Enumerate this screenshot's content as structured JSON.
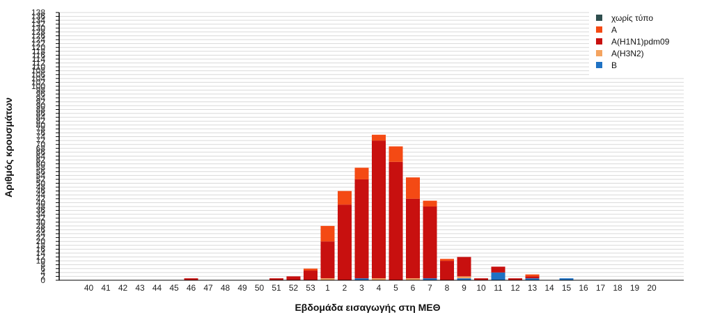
{
  "chart_data": {
    "type": "bar",
    "stacked": true,
    "xlabel": "Εβδομάδα εισαγωγής στη ΜΕΘ",
    "ylabel": "Αριθμός κρουσμάτων",
    "ylim": [
      0,
      138
    ],
    "y_ticks": [
      0,
      2,
      4,
      6,
      8,
      10,
      12,
      14,
      16,
      18,
      20,
      22,
      24,
      26,
      28,
      30,
      32,
      34,
      36,
      38,
      40,
      42,
      44,
      46,
      48,
      50,
      52,
      54,
      56,
      58,
      60,
      62,
      64,
      66,
      68,
      70,
      72,
      74,
      76,
      78,
      80,
      82,
      84,
      86,
      88,
      90,
      92,
      94,
      96,
      98,
      100,
      102,
      104,
      106,
      108,
      110,
      112,
      114,
      116,
      118,
      120,
      122,
      124,
      126,
      128,
      130,
      132,
      134,
      136,
      138
    ],
    "grid": true,
    "legend_position": "top-right",
    "categories": [
      "40",
      "41",
      "42",
      "43",
      "44",
      "45",
      "46",
      "47",
      "48",
      "49",
      "50",
      "51",
      "52",
      "53",
      "1",
      "2",
      "3",
      "4",
      "5",
      "6",
      "7",
      "8",
      "9",
      "10",
      "11",
      "12",
      "13",
      "14",
      "15",
      "16",
      "17",
      "18",
      "19",
      "20"
    ],
    "series": [
      {
        "name": "B",
        "color": "#1f72c4",
        "values": [
          0,
          0,
          0,
          0,
          0,
          0,
          0,
          0,
          0,
          0,
          0,
          0,
          0,
          0,
          0,
          0,
          1,
          0,
          0,
          0,
          1,
          0,
          1,
          0,
          4,
          0,
          1,
          0,
          1,
          0,
          0,
          0,
          0,
          0
        ]
      },
      {
        "name": "A(H3N2)",
        "color": "#f4a460",
        "values": [
          0,
          0,
          0,
          0,
          0,
          0,
          0,
          0,
          0,
          0,
          0,
          0,
          0,
          0,
          1,
          0,
          0,
          1,
          0,
          1,
          0,
          0,
          1,
          0,
          0,
          0,
          0,
          0,
          0,
          0,
          0,
          0,
          0,
          0
        ]
      },
      {
        "name": "A(H1N1)pdm09",
        "color": "#c8100f",
        "values": [
          0,
          0,
          0,
          0,
          0,
          0,
          1,
          0,
          0,
          0,
          0,
          1,
          2,
          5,
          19,
          39,
          51,
          71,
          61,
          41,
          37,
          10,
          10,
          1,
          3,
          1,
          1,
          0,
          0,
          0,
          0,
          0,
          0,
          0
        ]
      },
      {
        "name": "A",
        "color": "#f44a14",
        "values": [
          0,
          0,
          0,
          0,
          0,
          0,
          0,
          0,
          0,
          0,
          0,
          0,
          0,
          1,
          8,
          7,
          6,
          3,
          8,
          11,
          3,
          1,
          0,
          0,
          0,
          0,
          1,
          0,
          0,
          0,
          0,
          0,
          0,
          0
        ]
      },
      {
        "name": "χωρίς τύπο",
        "color": "#2f4f4f",
        "values": [
          0,
          0,
          0,
          0,
          0,
          0,
          0,
          0,
          0,
          0,
          0,
          0,
          0,
          0,
          0,
          0,
          0,
          0,
          0,
          0,
          0,
          0,
          0,
          0,
          0,
          0,
          0,
          0,
          0,
          0,
          0,
          0,
          0,
          0
        ]
      }
    ],
    "legend_order": [
      "χωρίς τύπο",
      "A",
      "A(H1N1)pdm09",
      "A(H3N2)",
      "B"
    ]
  }
}
